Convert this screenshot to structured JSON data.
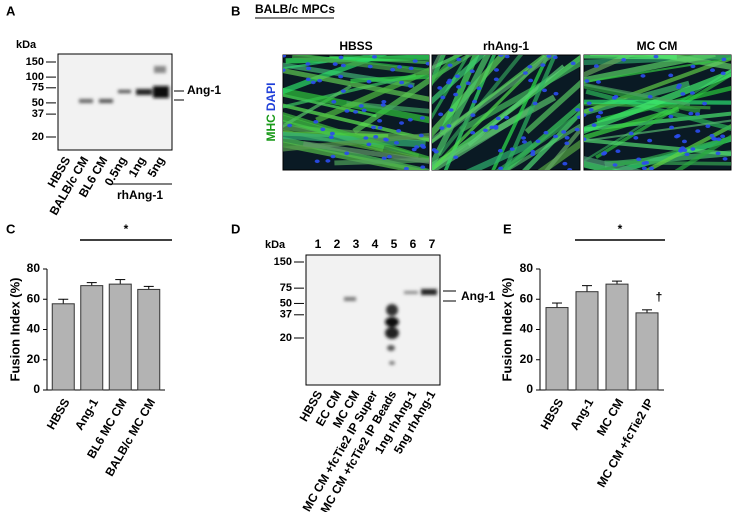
{
  "panels": {
    "a": "A",
    "b": "B",
    "c": "C",
    "d": "D",
    "e": "E"
  },
  "blot_a": {
    "kda_label": "kDa",
    "markers": [
      150,
      100,
      75,
      50,
      37,
      20
    ],
    "lanes": [
      "HBSS",
      "BALB/c CM",
      "BL6 CM",
      "0.5ng",
      "1ng",
      "5ng"
    ],
    "group_label": "rhAng-1",
    "band_label": "Ang-1"
  },
  "images_b": {
    "title": "BALB/c MPCs",
    "columns": [
      "HBSS",
      "rhAng-1",
      "MC CM"
    ],
    "stain_1": "MHC",
    "stain_2": "DAPI"
  },
  "blot_d": {
    "kda_label": "kDa",
    "lane_numbers": [
      "1",
      "2",
      "3",
      "4",
      "5",
      "6",
      "7"
    ],
    "markers": [
      150,
      75,
      50,
      37,
      20
    ],
    "lanes": [
      "HBSS",
      "EC CM",
      "MC CM",
      "MC CM +fcTie2 IP Super",
      "MC CM +fcTie2 IP Beads",
      "1ng rhAng-1",
      "5ng rhAng-1"
    ],
    "band_label": "Ang-1"
  },
  "chart_data": [
    {
      "type": "bar",
      "ylabel": "Fusion Index (%)",
      "categories": [
        "HBSS",
        "Ang-1",
        "BL6 MC CM",
        "BALB/c MC CM"
      ],
      "values": [
        57,
        69,
        70,
        66.5
      ],
      "errors": [
        3,
        2,
        3,
        2
      ],
      "color": "#b3b3b3",
      "ylim": [
        0,
        80
      ],
      "yticks": [
        0,
        20,
        40,
        60,
        80
      ],
      "annotations": [
        "*"
      ]
    },
    {
      "type": "bar",
      "ylabel": "Fusion Index (%)",
      "categories": [
        "HBSS",
        "Ang-1",
        "MC CM",
        "MC CM +fcTie2 IP"
      ],
      "values": [
        54.5,
        65,
        70,
        51
      ],
      "errors": [
        3,
        4,
        2,
        2
      ],
      "color": "#b3b3b3",
      "ylim": [
        0,
        80
      ],
      "yticks": [
        0,
        20,
        40,
        60,
        80
      ],
      "annotations": [
        "*",
        "†"
      ]
    }
  ]
}
